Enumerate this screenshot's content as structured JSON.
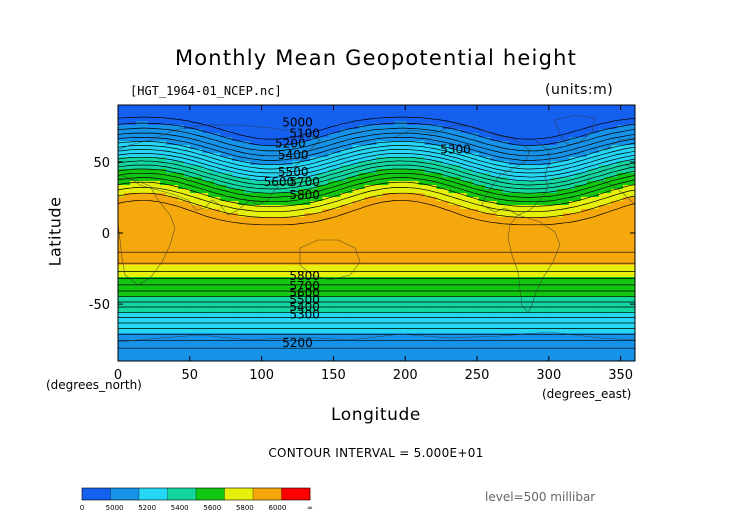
{
  "header": {
    "title": "Monthly Mean Geopotential height",
    "file": "[HGT_1964-01_NCEP.nc]",
    "units": "(units:m)"
  },
  "footer": {
    "contour_interval": "CONTOUR INTERVAL = 5.000E+01",
    "level": "level=500 millibar"
  },
  "chart_data": {
    "type": "heatmap",
    "title": "Monthly Mean Geopotential height",
    "xlabel": "Longitude",
    "ylabel": "Latitude",
    "x_unit_label": "(degrees_east)",
    "y_unit_label": "(degrees_north)",
    "xlim": [
      0,
      360
    ],
    "ylim": [
      -90,
      90
    ],
    "x_ticks": [
      0,
      50,
      100,
      150,
      200,
      250,
      300,
      350
    ],
    "y_ticks": [
      -50,
      0,
      50
    ],
    "contour_interval_m": 50,
    "contour_labels": [
      {
        "text": "5000",
        "lon": 125,
        "lat": 75
      },
      {
        "text": "5100",
        "lon": 130,
        "lat": 67
      },
      {
        "text": "5200",
        "lon": 120,
        "lat": 60
      },
      {
        "text": "5300",
        "lon": 235,
        "lat": 56
      },
      {
        "text": "5400",
        "lon": 122,
        "lat": 52
      },
      {
        "text": "5500",
        "lon": 122,
        "lat": 40
      },
      {
        "text": "5600",
        "lon": 112,
        "lat": 33
      },
      {
        "text": "5700",
        "lon": 130,
        "lat": 33
      },
      {
        "text": "5800",
        "lon": 130,
        "lat": 24
      },
      {
        "text": "5800",
        "lon": 130,
        "lat": -33
      },
      {
        "text": "5700",
        "lon": 130,
        "lat": -40
      },
      {
        "text": "5600",
        "lon": 130,
        "lat": -45
      },
      {
        "text": "5500",
        "lon": 130,
        "lat": -50
      },
      {
        "text": "5400",
        "lon": 130,
        "lat": -55
      },
      {
        "text": "5300",
        "lon": 130,
        "lat": -60
      },
      {
        "text": "5200",
        "lon": 125,
        "lat": -80
      }
    ],
    "colorbar": {
      "labels": [
        "0",
        "5000",
        "5200",
        "5400",
        "5600",
        "5800",
        "6000",
        "∞"
      ],
      "colors": [
        "#1560ee",
        "#1693e8",
        "#25d7f5",
        "#13d6a1",
        "#11c711",
        "#e6f00c",
        "#f5a80b",
        "#ff0000"
      ]
    }
  }
}
